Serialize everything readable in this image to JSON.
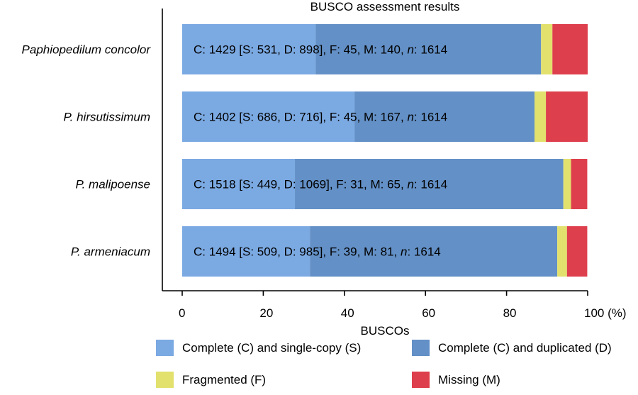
{
  "chart_data": {
    "type": "bar",
    "orientation": "horizontal",
    "stacked": true,
    "title": "BUSCO assessment results",
    "xlabel": "BUSCOs",
    "xlim": [
      0,
      100
    ],
    "x_ticks": [
      "0",
      "20",
      "40",
      "60",
      "80",
      "100 (%)"
    ],
    "categories": [
      "Paphiopedilum concolor",
      "P. hirsutissimum",
      "P. malipoense",
      "P. armeniacum"
    ],
    "category_labels": [
      {
        "pre": "",
        "italic": "Paphiopedilum concolor"
      },
      {
        "pre": "",
        "italic": "P. hirsutissimum"
      },
      {
        "pre": "",
        "italic": "P. malipoense"
      },
      {
        "pre": "",
        "italic": "P. armeniacum"
      }
    ],
    "annotations": [
      {
        "before": "C: 1429 [S: 531, D: 898], F: 45, M: 140, ",
        "italic": "n",
        "after": ": 1614"
      },
      {
        "before": "C: 1402 [S: 686, D: 716], F: 45, M: 167, ",
        "italic": "n",
        "after": ": 1614"
      },
      {
        "before": "C: 1518 [S: 449, D: 1069], F: 31, M: 65, ",
        "italic": "n",
        "after": ": 1614"
      },
      {
        "before": "C: 1494 [S: 509, D: 985], F: 39, M: 81, ",
        "italic": "n",
        "after": ": 1614"
      }
    ],
    "series": [
      {
        "name": "Complete (C) and single-copy (S)",
        "color": "#7BA9E2",
        "values": [
          32.9,
          42.5,
          27.8,
          31.5
        ]
      },
      {
        "name": "Complete (C) and duplicated (D)",
        "color": "#6390C6",
        "values": [
          55.6,
          44.4,
          66.2,
          61.0
        ]
      },
      {
        "name": "Fragmented (F)",
        "color": "#E2E16E",
        "values": [
          2.8,
          2.8,
          1.9,
          2.4
        ]
      },
      {
        "name": "Missing (M)",
        "color": "#DE3F4D",
        "values": [
          8.7,
          10.3,
          4.0,
          5.0
        ]
      }
    ],
    "legend_position": "bottom",
    "grid": false
  }
}
